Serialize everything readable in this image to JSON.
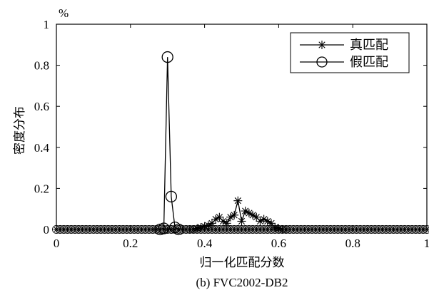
{
  "chart_data": {
    "type": "line",
    "caption": "(b) FVC2002-DB2",
    "xlabel": "归一化匹配分数",
    "ylabel": "密度分布",
    "yunit": "%",
    "xlim": [
      0,
      1
    ],
    "ylim": [
      0,
      1
    ],
    "xticks": [
      0,
      0.2,
      0.4,
      0.6,
      0.8,
      1
    ],
    "xtick_labels": [
      "0",
      "0.2",
      "0.4",
      "0.6",
      "0.8",
      "1"
    ],
    "yticks": [
      0,
      0.2,
      0.4,
      0.6,
      0.8,
      1
    ],
    "ytick_labels": [
      "0",
      "0.2",
      "0.4",
      "0.6",
      "0.8",
      "1"
    ],
    "grid": false,
    "legend_position": "top-right",
    "series": [
      {
        "name": "真匹配",
        "marker": "asterisk",
        "x": [
          0.36,
          0.37,
          0.38,
          0.39,
          0.4,
          0.41,
          0.42,
          0.43,
          0.44,
          0.45,
          0.46,
          0.47,
          0.48,
          0.49,
          0.5,
          0.51,
          0.52,
          0.53,
          0.54,
          0.55,
          0.56,
          0.57,
          0.58,
          0.59,
          0.6,
          0.61,
          0.62
        ],
        "y": [
          0.0,
          0.0,
          0.005,
          0.01,
          0.015,
          0.02,
          0.03,
          0.05,
          0.06,
          0.04,
          0.03,
          0.06,
          0.07,
          0.14,
          0.04,
          0.09,
          0.08,
          0.07,
          0.06,
          0.04,
          0.05,
          0.04,
          0.03,
          0.01,
          0.005,
          0.0,
          0.0
        ]
      },
      {
        "name": "假匹配",
        "marker": "circle",
        "x": [
          0.28,
          0.29,
          0.3,
          0.31,
          0.32,
          0.33
        ],
        "y": [
          0.0,
          0.005,
          0.84,
          0.16,
          0.01,
          0.0
        ]
      }
    ],
    "baseline_markers": {
      "y": 0.0,
      "x_start": 0.0,
      "x_end": 1.0,
      "step": 0.01
    }
  }
}
